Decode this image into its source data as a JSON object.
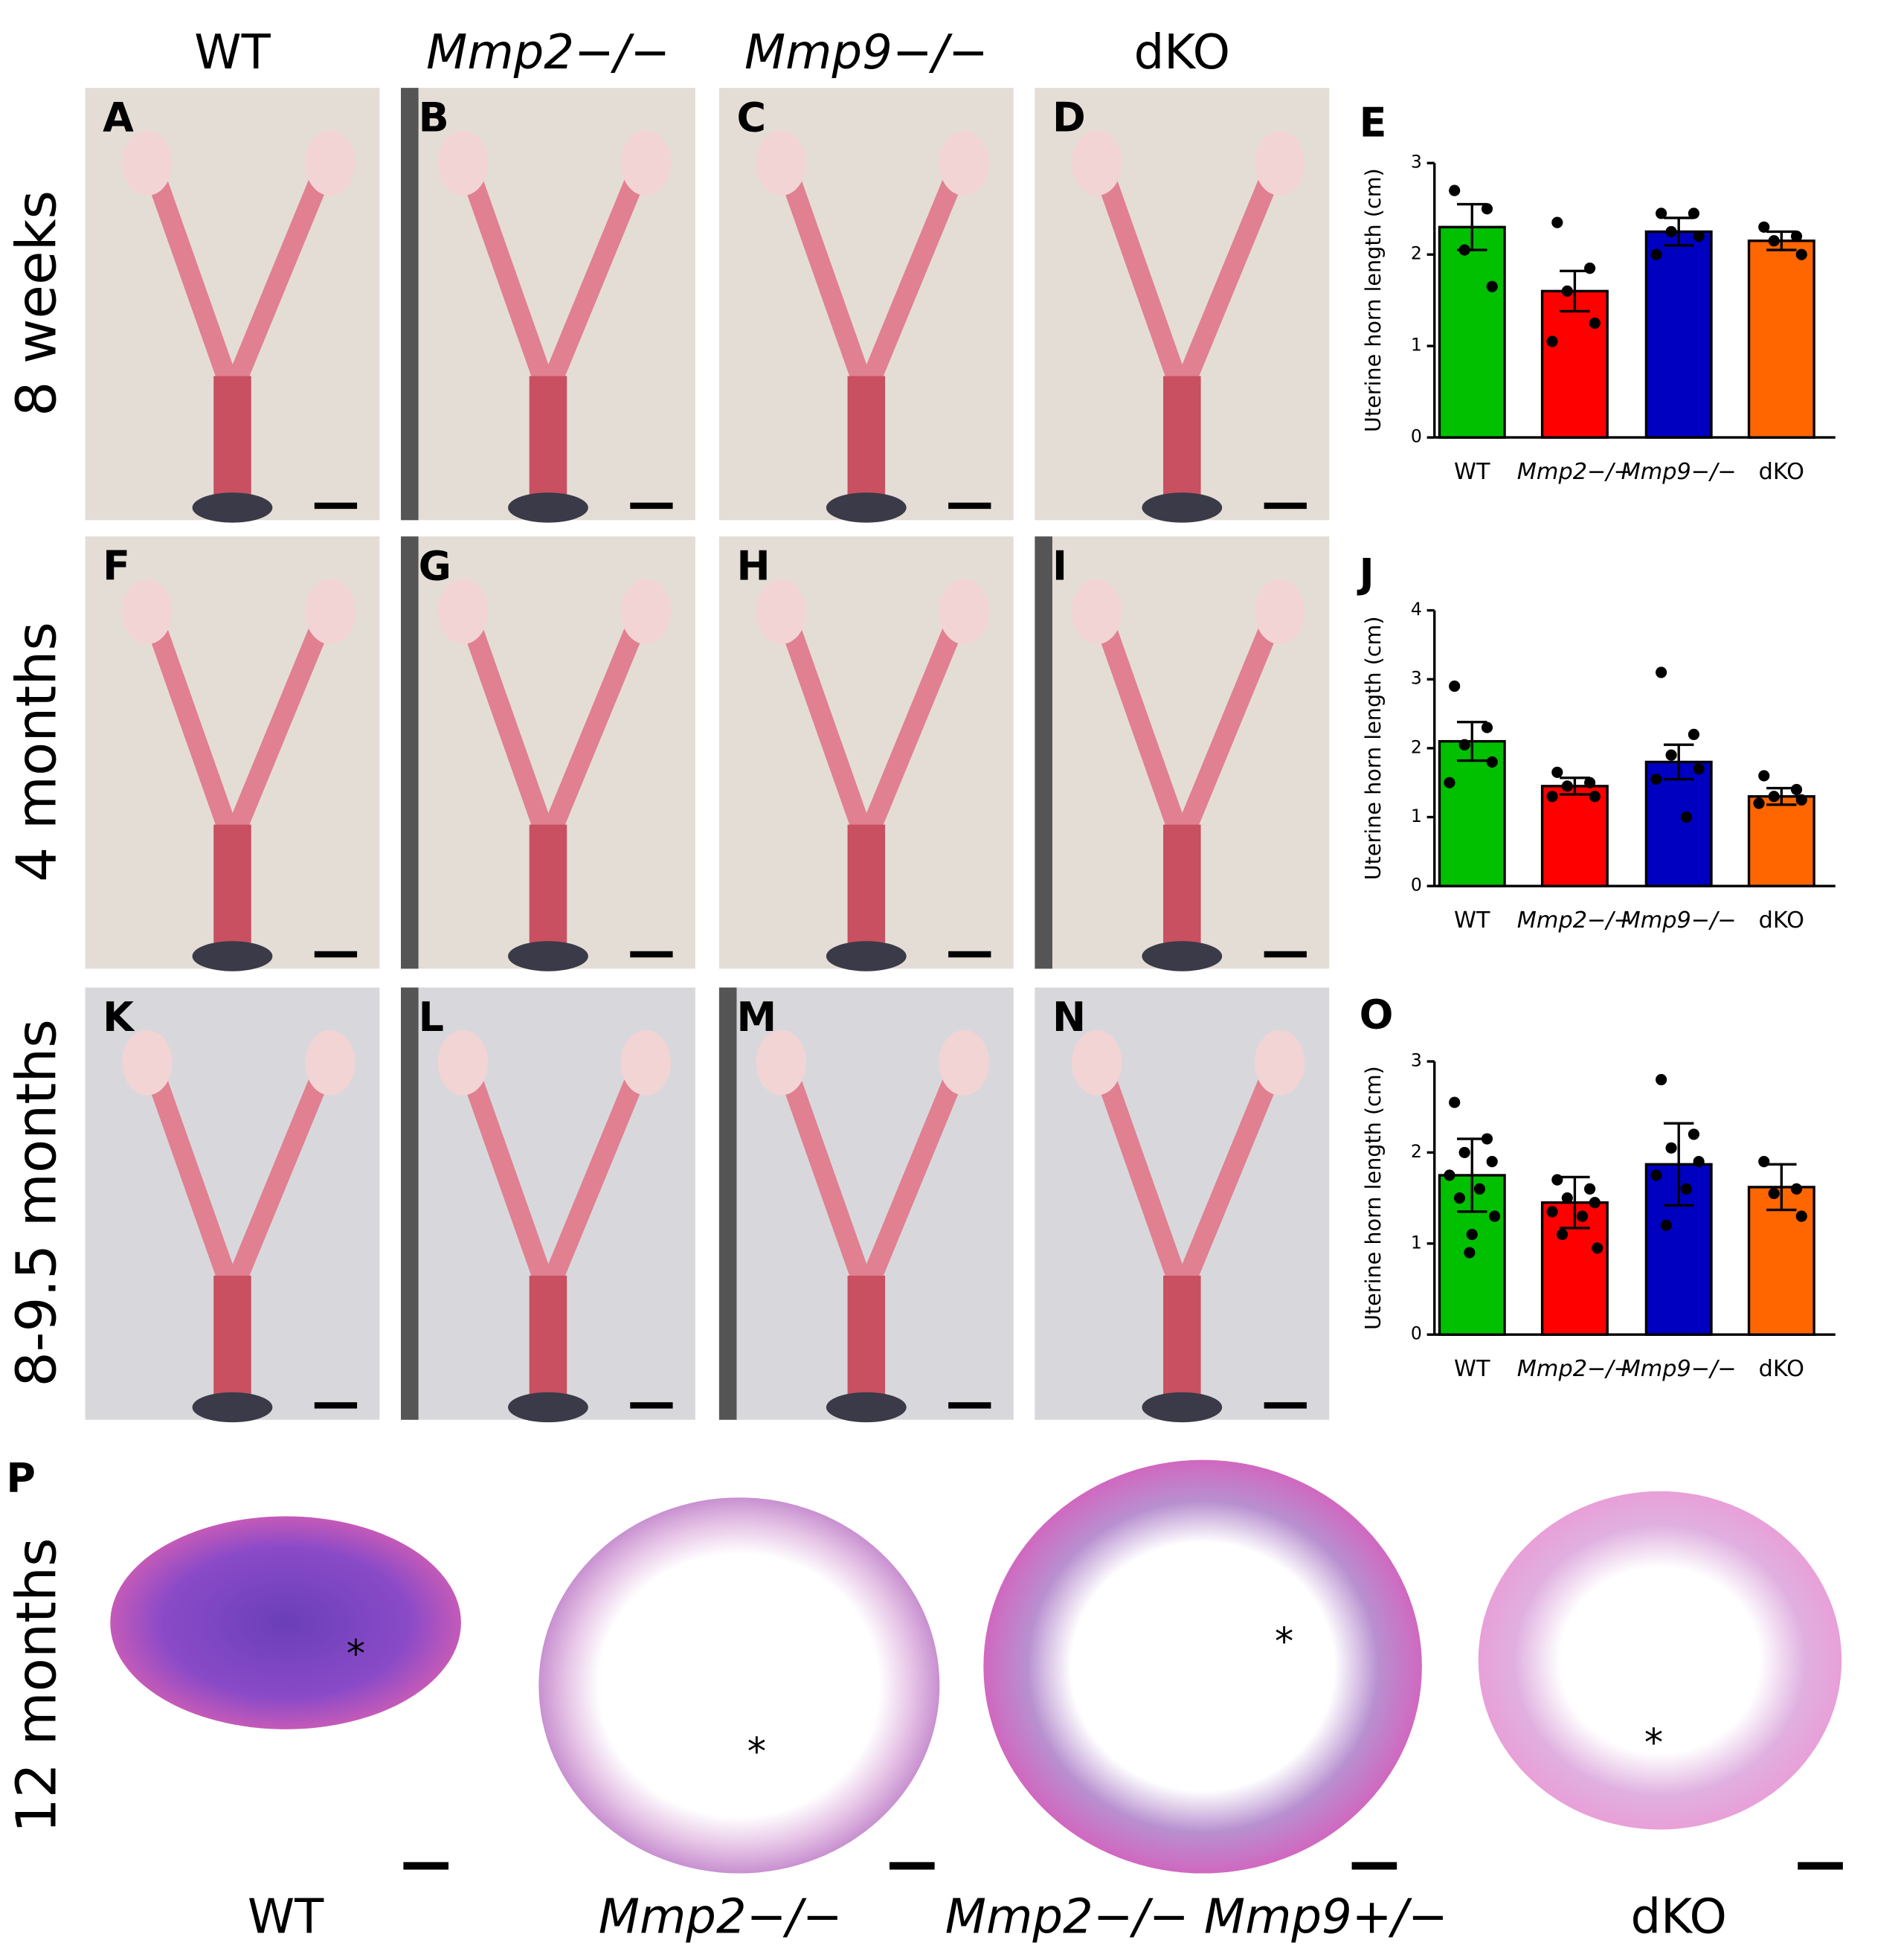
{
  "header": {
    "columns": [
      "WT",
      "Mmp2−/−",
      "Mmp9−/−",
      "dKO"
    ]
  },
  "rows": [
    "8 weeks",
    "4 months",
    "8-9.5 months",
    "12 months"
  ],
  "panels": [
    "A",
    "B",
    "C",
    "D",
    "F",
    "G",
    "H",
    "I",
    "K",
    "L",
    "M",
    "N",
    "P"
  ],
  "charts": [
    {
      "type": "bar",
      "letter": "E",
      "y_label": "Uterine horn length (cm)",
      "categories": [
        "WT",
        "Mmp2−/−",
        "Mmp9−/−",
        "dKO"
      ],
      "colors": [
        "#00c000",
        "#ff0000",
        "#0000c0",
        "#ff6600"
      ],
      "values": [
        2.3,
        1.6,
        2.25,
        2.15
      ],
      "errors": [
        0.25,
        0.22,
        0.15,
        0.1
      ],
      "points": [
        [
          2.7,
          2.5,
          2.05,
          1.65
        ],
        [
          2.35,
          1.85,
          1.6,
          1.25,
          1.05
        ],
        [
          2.45,
          2.45,
          2.25,
          2.2,
          2.0
        ],
        [
          2.3,
          2.2,
          2.15,
          2.0
        ]
      ],
      "ylim": [
        0,
        3
      ],
      "yticks": [
        0,
        1,
        2,
        3
      ]
    },
    {
      "type": "bar",
      "letter": "J",
      "y_label": "Uterine horn length (cm)",
      "categories": [
        "WT",
        "Mmp2−/−",
        "Mmp9−/−",
        "dKO"
      ],
      "colors": [
        "#00c000",
        "#ff0000",
        "#0000c0",
        "#ff6600"
      ],
      "values": [
        2.1,
        1.45,
        1.8,
        1.3
      ],
      "errors": [
        0.28,
        0.12,
        0.25,
        0.12
      ],
      "points": [
        [
          2.9,
          2.3,
          2.05,
          1.8,
          1.5
        ],
        [
          1.65,
          1.5,
          1.45,
          1.3,
          1.3
        ],
        [
          3.1,
          2.2,
          1.9,
          1.7,
          1.55,
          1.0
        ],
        [
          1.6,
          1.4,
          1.3,
          1.25,
          1.2
        ]
      ],
      "ylim": [
        0,
        4
      ],
      "yticks": [
        0,
        1,
        2,
        3,
        4
      ]
    },
    {
      "type": "bar",
      "letter": "O",
      "y_label": "Uterine horn length (cm)",
      "categories": [
        "WT",
        "Mmp2−/−",
        "Mmp9−/−",
        "dKO"
      ],
      "colors": [
        "#00c000",
        "#ff0000",
        "#0000c0",
        "#ff6600"
      ],
      "values": [
        1.75,
        1.45,
        1.87,
        1.62
      ],
      "errors": [
        0.4,
        0.28,
        0.45,
        0.25
      ],
      "points": [
        [
          2.55,
          2.15,
          2.0,
          1.9,
          1.75,
          1.6,
          1.5,
          1.3,
          1.1,
          0.9
        ],
        [
          1.7,
          1.6,
          1.5,
          1.45,
          1.35,
          1.3,
          1.1,
          0.95
        ],
        [
          2.8,
          2.2,
          2.05,
          1.9,
          1.75,
          1.6,
          1.2
        ],
        [
          1.9,
          1.6,
          1.55,
          1.3
        ]
      ],
      "ylim": [
        0,
        3
      ],
      "yticks": [
        0,
        1,
        2,
        3
      ]
    }
  ],
  "histology": {
    "labels": [
      "WT",
      "Mmp2−/−",
      "Mmp2−/− Mmp9+/−",
      "dKO"
    ],
    "asterisks": [
      "*",
      "*",
      "*",
      "*"
    ]
  }
}
